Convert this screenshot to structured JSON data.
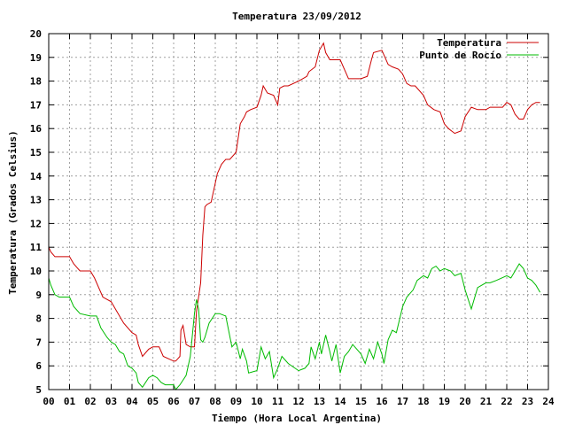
{
  "chart_data": {
    "type": "line",
    "title": "Temperatura 23/09/2012",
    "xlabel": "Tiempo (Hora Local Argentina)",
    "ylabel": "Temperatura (Grados Celsius)",
    "xlim": [
      0,
      24
    ],
    "ylim": [
      5,
      20
    ],
    "x_tick_labels": [
      "00",
      "01",
      "02",
      "03",
      "04",
      "05",
      "06",
      "07",
      "08",
      "09",
      "10",
      "11",
      "12",
      "13",
      "14",
      "15",
      "16",
      "17",
      "18",
      "19",
      "20",
      "21",
      "22",
      "23",
      "24"
    ],
    "y_tick_labels": [
      "5",
      "6",
      "7",
      "8",
      "9",
      "10",
      "11",
      "12",
      "13",
      "14",
      "15",
      "16",
      "17",
      "18",
      "19",
      "20"
    ],
    "grid": true,
    "legend_position": "top-right",
    "series": [
      {
        "name": "Temperatura",
        "color": "#cc0000",
        "x": [
          0.0,
          0.1,
          0.3,
          0.5,
          1.0,
          1.2,
          1.4,
          1.5,
          2.0,
          2.2,
          2.4,
          2.6,
          3.0,
          3.2,
          3.4,
          3.6,
          4.0,
          4.2,
          4.3,
          4.5,
          4.8,
          5.0,
          5.3,
          5.5,
          6.0,
          6.1,
          6.2,
          6.3,
          6.35,
          6.45,
          6.6,
          6.8,
          7.0,
          7.1,
          7.3,
          7.4,
          7.5,
          7.6,
          7.8,
          8.0,
          8.1,
          8.3,
          8.5,
          8.7,
          9.0,
          9.2,
          9.4,
          9.5,
          9.7,
          10.0,
          10.2,
          10.3,
          10.5,
          10.8,
          11.0,
          11.1,
          11.3,
          11.5,
          12.0,
          12.2,
          12.4,
          12.5,
          12.8,
          13.0,
          13.2,
          13.3,
          13.5,
          14.0,
          14.2,
          14.4,
          15.0,
          15.3,
          15.5,
          15.6,
          16.0,
          16.1,
          16.3,
          16.5,
          16.8,
          17.0,
          17.2,
          17.4,
          17.6,
          18.0,
          18.2,
          18.5,
          18.8,
          19.0,
          19.2,
          19.5,
          19.8,
          20.0,
          20.3,
          20.6,
          21.0,
          21.2,
          21.5,
          21.8,
          22.0,
          22.2,
          22.4,
          22.6,
          22.8,
          23.0,
          23.2,
          23.4,
          23.6
        ],
        "y": [
          11.0,
          10.8,
          10.6,
          10.6,
          10.6,
          10.3,
          10.1,
          10.0,
          10.0,
          9.7,
          9.3,
          8.9,
          8.7,
          8.4,
          8.1,
          7.8,
          7.4,
          7.3,
          6.9,
          6.4,
          6.7,
          6.8,
          6.8,
          6.4,
          6.2,
          6.2,
          6.3,
          6.4,
          7.5,
          7.7,
          6.9,
          6.8,
          6.8,
          8.3,
          9.5,
          11.5,
          12.7,
          12.8,
          12.9,
          13.7,
          14.1,
          14.5,
          14.7,
          14.7,
          15.0,
          16.2,
          16.5,
          16.7,
          16.8,
          16.9,
          17.4,
          17.8,
          17.5,
          17.4,
          17.0,
          17.7,
          17.8,
          17.8,
          18.0,
          18.1,
          18.2,
          18.4,
          18.6,
          19.3,
          19.6,
          19.2,
          18.9,
          18.9,
          18.5,
          18.1,
          18.1,
          18.2,
          18.9,
          19.2,
          19.3,
          19.1,
          18.7,
          18.6,
          18.5,
          18.3,
          17.9,
          17.8,
          17.8,
          17.4,
          17.0,
          16.8,
          16.7,
          16.2,
          16.0,
          15.8,
          15.9,
          16.5,
          16.9,
          16.8,
          16.8,
          16.9,
          16.9,
          16.9,
          17.1,
          17.0,
          16.6,
          16.4,
          16.4,
          16.8,
          17.0,
          17.1,
          17.1
        ]
      },
      {
        "name": "Punto de Rocío",
        "color": "#00bb00",
        "x": [
          0.0,
          0.1,
          0.3,
          0.5,
          1.0,
          1.2,
          1.5,
          2.0,
          2.3,
          2.5,
          2.8,
          3.0,
          3.2,
          3.4,
          3.6,
          3.8,
          4.0,
          4.2,
          4.3,
          4.5,
          4.8,
          5.0,
          5.2,
          5.4,
          5.6,
          6.0,
          6.1,
          6.3,
          6.6,
          6.8,
          7.0,
          7.1,
          7.2,
          7.3,
          7.4,
          7.5,
          7.7,
          8.0,
          8.2,
          8.5,
          8.8,
          9.0,
          9.2,
          9.3,
          9.5,
          9.6,
          10.0,
          10.2,
          10.4,
          10.6,
          10.8,
          11.0,
          11.2,
          11.5,
          12.0,
          12.3,
          12.5,
          12.6,
          12.8,
          13.0,
          13.1,
          13.3,
          13.5,
          13.6,
          13.8,
          14.0,
          14.2,
          14.4,
          14.6,
          14.8,
          15.0,
          15.2,
          15.4,
          15.6,
          15.8,
          16.0,
          16.1,
          16.3,
          16.5,
          16.7,
          17.0,
          17.2,
          17.5,
          17.7,
          18.0,
          18.2,
          18.4,
          18.6,
          18.8,
          19.0,
          19.3,
          19.5,
          19.8,
          20.0,
          20.3,
          20.6,
          21.0,
          21.2,
          21.5,
          22.0,
          22.2,
          22.4,
          22.6,
          22.8,
          23.0,
          23.2,
          23.4,
          23.6
        ],
        "y": [
          9.7,
          9.4,
          9.0,
          8.9,
          8.9,
          8.5,
          8.2,
          8.1,
          8.1,
          7.6,
          7.2,
          7.0,
          6.9,
          6.6,
          6.5,
          6.0,
          5.9,
          5.7,
          5.3,
          5.1,
          5.5,
          5.6,
          5.5,
          5.3,
          5.2,
          5.2,
          5.0,
          5.2,
          5.6,
          6.4,
          8.2,
          8.8,
          8.4,
          7.1,
          7.0,
          7.2,
          7.8,
          8.2,
          8.2,
          8.1,
          6.8,
          7.0,
          6.3,
          6.7,
          6.2,
          5.7,
          5.8,
          6.8,
          6.3,
          6.6,
          5.5,
          5.9,
          6.4,
          6.1,
          5.8,
          5.9,
          6.1,
          6.8,
          6.3,
          7.0,
          6.5,
          7.3,
          6.6,
          6.2,
          6.9,
          5.7,
          6.4,
          6.6,
          6.9,
          6.7,
          6.5,
          6.1,
          6.7,
          6.3,
          7.0,
          6.5,
          6.1,
          7.1,
          7.5,
          7.4,
          8.5,
          8.9,
          9.2,
          9.6,
          9.8,
          9.7,
          10.1,
          10.2,
          10.0,
          10.1,
          10.0,
          9.8,
          9.9,
          9.2,
          8.4,
          9.3,
          9.5,
          9.5,
          9.6,
          9.8,
          9.7,
          10.0,
          10.3,
          10.1,
          9.7,
          9.6,
          9.4,
          9.1
        ]
      }
    ]
  }
}
